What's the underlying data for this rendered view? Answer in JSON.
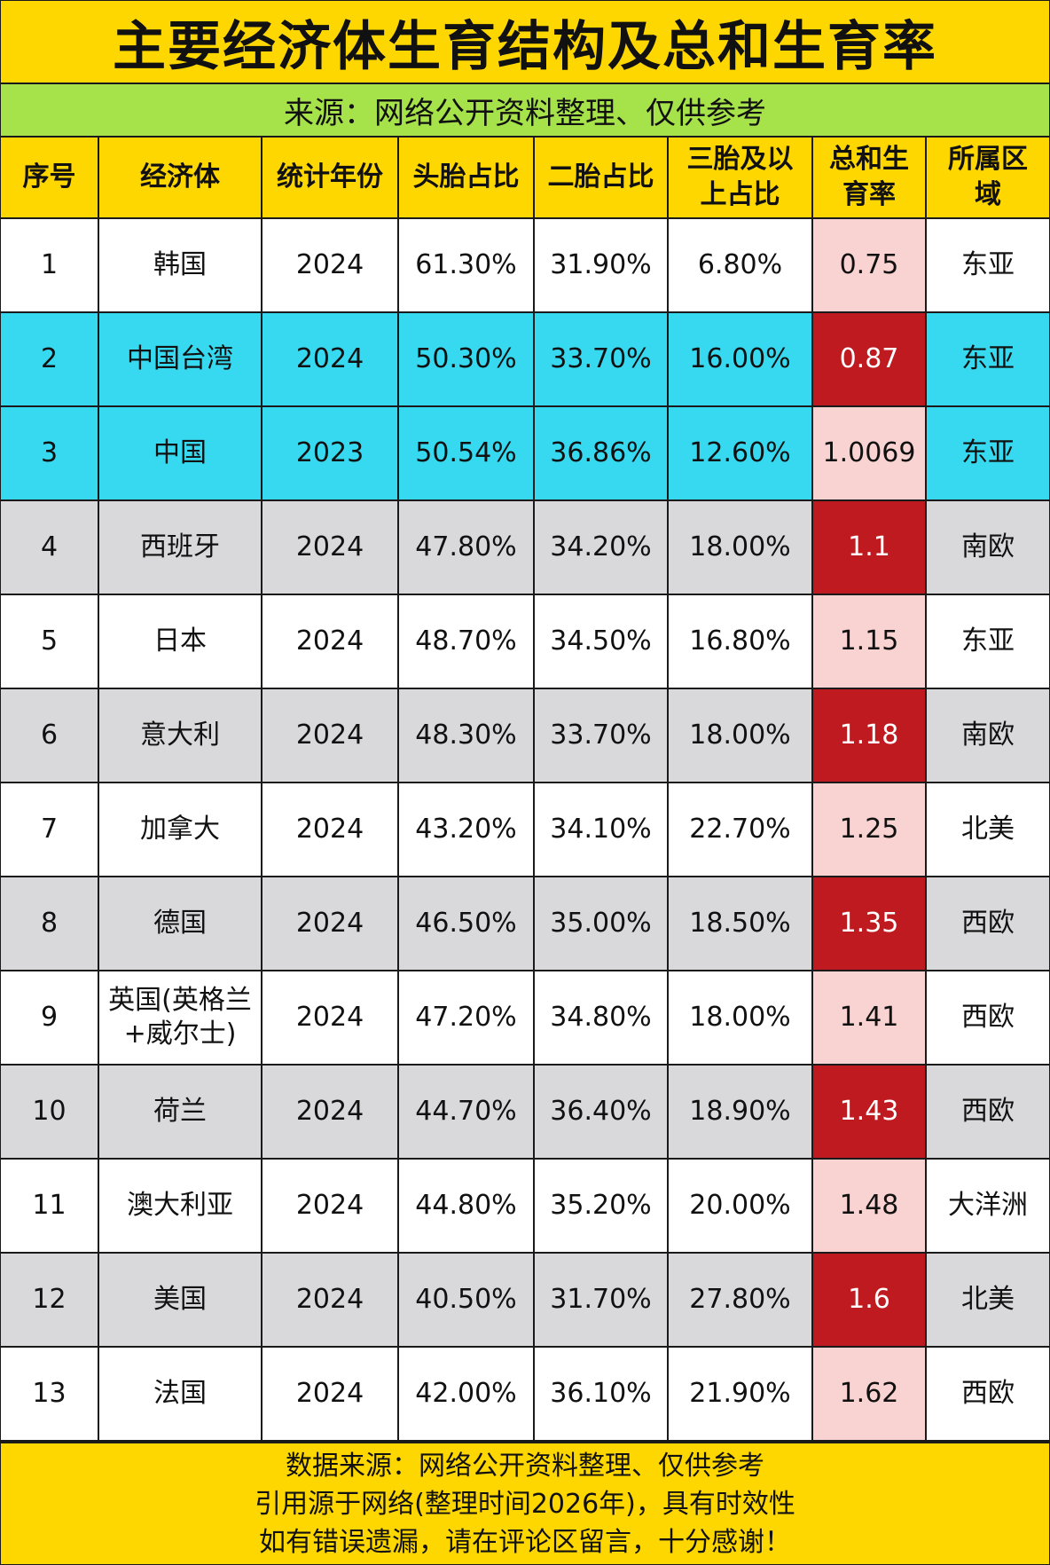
{
  "title": "主要经济体生育结构及总和生育率",
  "subtitle": "来源：网络公开资料整理、仅供参考",
  "colors": {
    "header_yellow": "#FFD700",
    "subtitle_green": "#A6E24A",
    "row_cyan": "#36D9F0",
    "row_gray": "#D9D9DB",
    "tfr_light_pink": "#F8D3D1",
    "tfr_dark_red": "#BE1A1F"
  },
  "table": {
    "columns": [
      "序号",
      "经济体",
      "统计年份",
      "头胎占比",
      "二胎占比",
      "三胎及以上占比",
      "总和生育率",
      "所属区域"
    ],
    "rows": [
      {
        "no": "1",
        "economy": "韩国",
        "year": "2024",
        "first": "61.30%",
        "second": "31.90%",
        "third_plus": "6.80%",
        "tfr": "0.75",
        "region": "东亚",
        "row_style": "white",
        "tfr_style": "light"
      },
      {
        "no": "2",
        "economy": "中国台湾",
        "year": "2024",
        "first": "50.30%",
        "second": "33.70%",
        "third_plus": "16.00%",
        "tfr": "0.87",
        "region": "东亚",
        "row_style": "cyan",
        "tfr_style": "dark"
      },
      {
        "no": "3",
        "economy": "中国",
        "year": "2023",
        "first": "50.54%",
        "second": "36.86%",
        "third_plus": "12.60%",
        "tfr": "1.0069",
        "region": "东亚",
        "row_style": "cyan",
        "tfr_style": "light"
      },
      {
        "no": "4",
        "economy": "西班牙",
        "year": "2024",
        "first": "47.80%",
        "second": "34.20%",
        "third_plus": "18.00%",
        "tfr": "1.1",
        "region": "南欧",
        "row_style": "gray",
        "tfr_style": "dark"
      },
      {
        "no": "5",
        "economy": "日本",
        "year": "2024",
        "first": "48.70%",
        "second": "34.50%",
        "third_plus": "16.80%",
        "tfr": "1.15",
        "region": "东亚",
        "row_style": "white",
        "tfr_style": "light"
      },
      {
        "no": "6",
        "economy": "意大利",
        "year": "2024",
        "first": "48.30%",
        "second": "33.70%",
        "third_plus": "18.00%",
        "tfr": "1.18",
        "region": "南欧",
        "row_style": "gray",
        "tfr_style": "dark"
      },
      {
        "no": "7",
        "economy": "加拿大",
        "year": "2024",
        "first": "43.20%",
        "second": "34.10%",
        "third_plus": "22.70%",
        "tfr": "1.25",
        "region": "北美",
        "row_style": "white",
        "tfr_style": "light"
      },
      {
        "no": "8",
        "economy": "德国",
        "year": "2024",
        "first": "46.50%",
        "second": "35.00%",
        "third_plus": "18.50%",
        "tfr": "1.35",
        "region": "西欧",
        "row_style": "gray",
        "tfr_style": "dark"
      },
      {
        "no": "9",
        "economy": "英国(英格兰+威尔士)",
        "year": "2024",
        "first": "47.20%",
        "second": "34.80%",
        "third_plus": "18.00%",
        "tfr": "1.41",
        "region": "西欧",
        "row_style": "white",
        "tfr_style": "light"
      },
      {
        "no": "10",
        "economy": "荷兰",
        "year": "2024",
        "first": "44.70%",
        "second": "36.40%",
        "third_plus": "18.90%",
        "tfr": "1.43",
        "region": "西欧",
        "row_style": "gray",
        "tfr_style": "dark"
      },
      {
        "no": "11",
        "economy": "澳大利亚",
        "year": "2024",
        "first": "44.80%",
        "second": "35.20%",
        "third_plus": "20.00%",
        "tfr": "1.48",
        "region": "大洋洲",
        "row_style": "white",
        "tfr_style": "light"
      },
      {
        "no": "12",
        "economy": "美国",
        "year": "2024",
        "first": "40.50%",
        "second": "31.70%",
        "third_plus": "27.80%",
        "tfr": "1.6",
        "region": "北美",
        "row_style": "gray",
        "tfr_style": "dark"
      },
      {
        "no": "13",
        "economy": "法国",
        "year": "2024",
        "first": "42.00%",
        "second": "36.10%",
        "third_plus": "21.90%",
        "tfr": "1.62",
        "region": "西欧",
        "row_style": "white",
        "tfr_style": "light"
      }
    ]
  },
  "footer": {
    "lines": [
      "数据来源：网络公开资料整理、仅供参考",
      "引用源于网络(整理时间2026年)，具有时效性",
      "如有错误遗漏，请在评论区留言，十分感谢！"
    ]
  }
}
